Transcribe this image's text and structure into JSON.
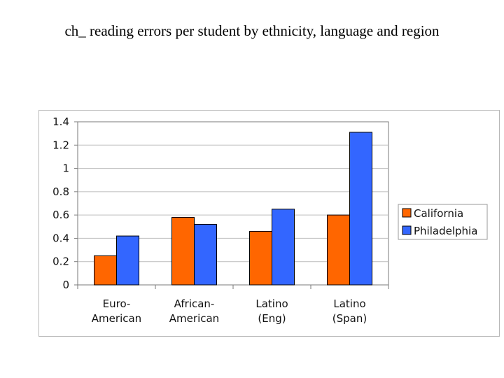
{
  "title": "ch_ reading errors per student by ethnicity, language and region",
  "colors": {
    "California": "#ff6600",
    "Philadelphia": "#3366ff",
    "grid": "#bcbcbc",
    "axis": "#7a7a7a"
  },
  "chart_data": {
    "type": "bar",
    "categories": [
      [
        "Euro-",
        "American"
      ],
      [
        "African-",
        "American"
      ],
      [
        "Latino",
        "(Eng)"
      ],
      [
        "Latino",
        "(Span)"
      ]
    ],
    "series": [
      {
        "name": "California",
        "values": [
          0.25,
          0.58,
          0.46,
          0.6
        ]
      },
      {
        "name": "Philadelphia",
        "values": [
          0.42,
          0.52,
          0.65,
          1.31
        ]
      }
    ],
    "yticks": [
      "0",
      "0.2",
      "0.4",
      "0.6",
      "0.8",
      "1",
      "1.2",
      "1.4"
    ],
    "ylim": [
      0,
      1.4
    ],
    "grid": true,
    "legend": "right"
  }
}
